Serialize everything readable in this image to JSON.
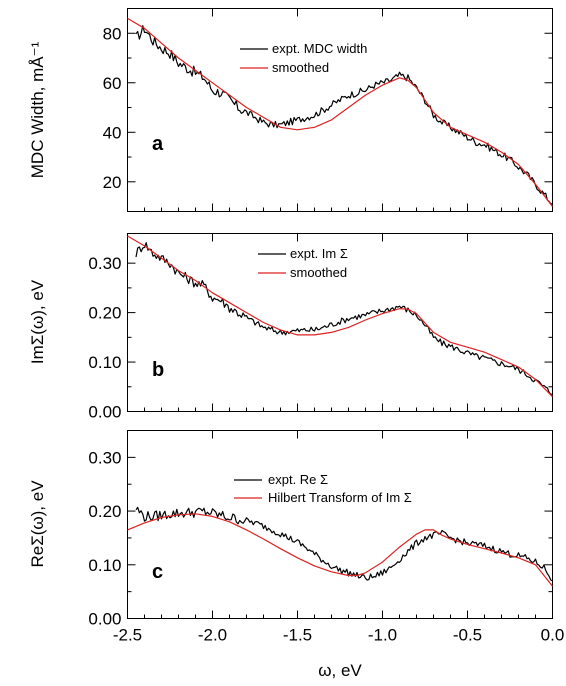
{
  "chart_data": [
    {
      "type": "line",
      "panel_label": "a",
      "ylabel": "MDC Width, mÅ⁻¹",
      "ylim": [
        8,
        90
      ],
      "yticks": [
        20,
        40,
        60,
        80
      ],
      "ytick_labels": [
        "20",
        "40",
        "60",
        "80"
      ],
      "xlim": [
        -2.5,
        0.0
      ],
      "legend_location": "top-center",
      "series": [
        {
          "name": "expt. MDC width",
          "color": "#000000",
          "x": [
            -2.45,
            -2.4,
            -2.35,
            -2.3,
            -2.25,
            -2.2,
            -2.15,
            -2.1,
            -2.05,
            -2.0,
            -1.95,
            -1.9,
            -1.85,
            -1.8,
            -1.75,
            -1.7,
            -1.65,
            -1.6,
            -1.55,
            -1.5,
            -1.45,
            -1.4,
            -1.35,
            -1.3,
            -1.25,
            -1.2,
            -1.15,
            -1.1,
            -1.05,
            -1.0,
            -0.95,
            -0.9,
            -0.85,
            -0.8,
            -0.75,
            -0.7,
            -0.65,
            -0.6,
            -0.55,
            -0.5,
            -0.45,
            -0.4,
            -0.35,
            -0.3,
            -0.25,
            -0.2,
            -0.15,
            -0.1,
            -0.05,
            0.0
          ],
          "y": [
            78,
            82,
            77,
            74,
            72,
            68,
            66,
            64,
            62,
            57,
            56,
            53,
            50,
            48,
            46,
            44,
            43,
            43,
            44,
            45,
            46,
            47,
            49,
            51,
            53,
            55,
            56,
            57,
            59,
            60,
            61,
            63,
            62,
            58,
            53,
            47,
            44,
            42,
            40,
            38,
            36,
            35,
            33,
            31,
            29,
            26,
            23,
            19,
            15,
            11
          ]
        },
        {
          "name": "smoothed",
          "color": "#dd2222",
          "x": [
            -2.5,
            -2.4,
            -2.3,
            -2.2,
            -2.1,
            -2.0,
            -1.9,
            -1.8,
            -1.7,
            -1.6,
            -1.5,
            -1.4,
            -1.3,
            -1.2,
            -1.1,
            -1.0,
            -0.9,
            -0.85,
            -0.8,
            -0.7,
            -0.6,
            -0.5,
            -0.4,
            -0.3,
            -0.2,
            -0.1,
            0.0
          ],
          "y": [
            86,
            82,
            76,
            70,
            65,
            60,
            55,
            50,
            46,
            42,
            41,
            42,
            45,
            50,
            55,
            59,
            62,
            61,
            58,
            48,
            42,
            39,
            36,
            32,
            27,
            19,
            10
          ]
        }
      ]
    },
    {
      "type": "line",
      "panel_label": "b",
      "ylabel": "ImΣ(ω), eV",
      "ylim": [
        0.0,
        0.36
      ],
      "yticks": [
        0.0,
        0.1,
        0.2,
        0.3
      ],
      "ytick_labels": [
        "0.00",
        "0.10",
        "0.20",
        "0.30"
      ],
      "xlim": [
        -2.5,
        0.0
      ],
      "legend_location": "top-center",
      "series": [
        {
          "name": "expt. Im Σ",
          "color": "#000000",
          "x": [
            -2.45,
            -2.4,
            -2.35,
            -2.3,
            -2.25,
            -2.2,
            -2.15,
            -2.1,
            -2.05,
            -2.0,
            -1.95,
            -1.9,
            -1.85,
            -1.8,
            -1.75,
            -1.7,
            -1.65,
            -1.6,
            -1.55,
            -1.5,
            -1.45,
            -1.4,
            -1.35,
            -1.3,
            -1.25,
            -1.2,
            -1.15,
            -1.1,
            -1.05,
            -1.0,
            -0.95,
            -0.9,
            -0.85,
            -0.8,
            -0.75,
            -0.7,
            -0.65,
            -0.6,
            -0.55,
            -0.5,
            -0.45,
            -0.4,
            -0.35,
            -0.3,
            -0.25,
            -0.2,
            -0.15,
            -0.1,
            -0.05,
            0.0
          ],
          "y": [
            0.32,
            0.34,
            0.32,
            0.31,
            0.3,
            0.28,
            0.27,
            0.26,
            0.255,
            0.23,
            0.225,
            0.21,
            0.2,
            0.19,
            0.18,
            0.17,
            0.165,
            0.16,
            0.162,
            0.163,
            0.165,
            0.165,
            0.17,
            0.176,
            0.182,
            0.188,
            0.192,
            0.195,
            0.2,
            0.204,
            0.208,
            0.213,
            0.205,
            0.195,
            0.175,
            0.15,
            0.138,
            0.132,
            0.125,
            0.118,
            0.112,
            0.108,
            0.102,
            0.097,
            0.092,
            0.085,
            0.075,
            0.063,
            0.05,
            0.035
          ]
        },
        {
          "name": "smoothed",
          "color": "#dd2222",
          "x": [
            -2.5,
            -2.4,
            -2.3,
            -2.2,
            -2.1,
            -2.0,
            -1.9,
            -1.8,
            -1.7,
            -1.6,
            -1.5,
            -1.4,
            -1.3,
            -1.2,
            -1.1,
            -1.0,
            -0.9,
            -0.85,
            -0.8,
            -0.7,
            -0.6,
            -0.5,
            -0.4,
            -0.3,
            -0.2,
            -0.1,
            0.0
          ],
          "y": [
            0.355,
            0.335,
            0.31,
            0.285,
            0.265,
            0.24,
            0.22,
            0.2,
            0.18,
            0.165,
            0.155,
            0.155,
            0.16,
            0.17,
            0.185,
            0.198,
            0.208,
            0.207,
            0.198,
            0.16,
            0.14,
            0.13,
            0.12,
            0.105,
            0.09,
            0.065,
            0.03
          ]
        }
      ]
    },
    {
      "type": "line",
      "panel_label": "c",
      "ylabel": "ReΣ(ω), eV",
      "ylim": [
        0.0,
        0.35
      ],
      "yticks": [
        0.0,
        0.1,
        0.2,
        0.3
      ],
      "ytick_labels": [
        "0.00",
        "0.10",
        "0.20",
        "0.30"
      ],
      "xlim": [
        -2.5,
        0.0
      ],
      "xticks": [
        -2.5,
        -2.0,
        -1.5,
        -1.0,
        -0.5,
        0.0
      ],
      "xtick_labels": [
        "-2.5",
        "-2.0",
        "-1.5",
        "-1.0",
        "-0.5",
        "0.0"
      ],
      "xlabel": "ω, eV",
      "legend_location": "top-center",
      "series": [
        {
          "name": "expt. Re Σ",
          "color": "#000000",
          "x": [
            -2.45,
            -2.4,
            -2.35,
            -2.3,
            -2.25,
            -2.2,
            -2.15,
            -2.1,
            -2.05,
            -2.0,
            -1.95,
            -1.9,
            -1.85,
            -1.8,
            -1.75,
            -1.7,
            -1.65,
            -1.6,
            -1.55,
            -1.5,
            -1.45,
            -1.4,
            -1.35,
            -1.3,
            -1.25,
            -1.2,
            -1.15,
            -1.1,
            -1.05,
            -1.0,
            -0.95,
            -0.9,
            -0.85,
            -0.8,
            -0.75,
            -0.7,
            -0.65,
            -0.6,
            -0.55,
            -0.5,
            -0.45,
            -0.4,
            -0.35,
            -0.3,
            -0.25,
            -0.2,
            -0.15,
            -0.1,
            -0.05,
            0.0
          ],
          "y": [
            0.205,
            0.19,
            0.19,
            0.192,
            0.195,
            0.196,
            0.197,
            0.198,
            0.199,
            0.196,
            0.192,
            0.188,
            0.185,
            0.182,
            0.178,
            0.172,
            0.165,
            0.158,
            0.15,
            0.142,
            0.132,
            0.12,
            0.108,
            0.098,
            0.09,
            0.085,
            0.08,
            0.075,
            0.078,
            0.085,
            0.095,
            0.11,
            0.125,
            0.14,
            0.15,
            0.155,
            0.158,
            0.15,
            0.145,
            0.14,
            0.138,
            0.135,
            0.13,
            0.125,
            0.12,
            0.117,
            0.112,
            0.105,
            0.095,
            0.07
          ]
        },
        {
          "name": "Hilbert Transform of Im Σ",
          "color": "#dd2222",
          "x": [
            -2.5,
            -2.4,
            -2.3,
            -2.2,
            -2.1,
            -2.0,
            -1.9,
            -1.8,
            -1.7,
            -1.6,
            -1.5,
            -1.4,
            -1.3,
            -1.2,
            -1.15,
            -1.1,
            -1.0,
            -0.9,
            -0.8,
            -0.75,
            -0.7,
            -0.65,
            -0.6,
            -0.5,
            -0.4,
            -0.3,
            -0.2,
            -0.1,
            0.0
          ],
          "y": [
            0.165,
            0.178,
            0.188,
            0.193,
            0.195,
            0.19,
            0.18,
            0.165,
            0.148,
            0.13,
            0.113,
            0.098,
            0.087,
            0.08,
            0.08,
            0.085,
            0.105,
            0.133,
            0.157,
            0.165,
            0.165,
            0.155,
            0.148,
            0.138,
            0.13,
            0.122,
            0.113,
            0.1,
            0.06
          ]
        }
      ]
    }
  ]
}
